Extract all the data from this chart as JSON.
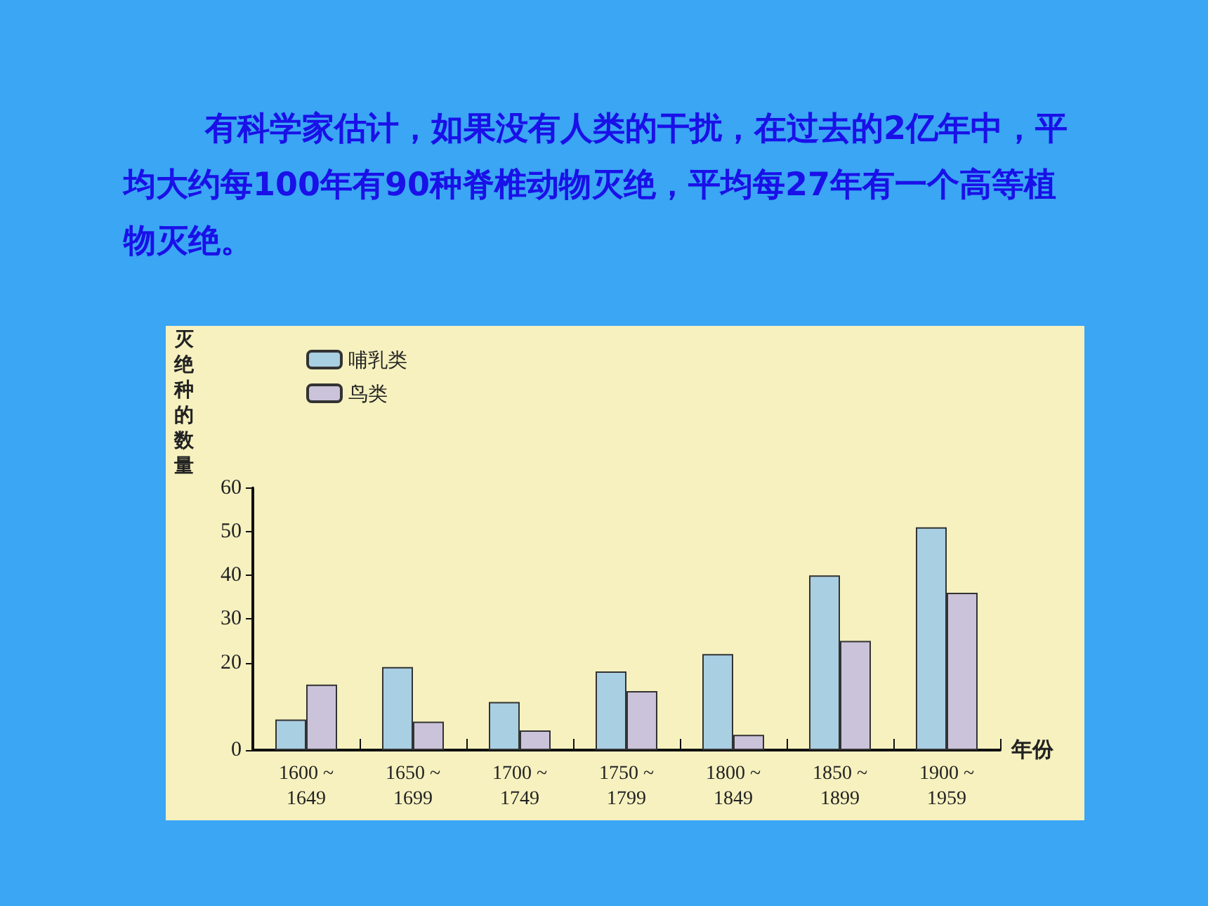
{
  "chart_data": {
    "type": "bar",
    "title": "有科学家估计，如果没有人类的干扰，在过去的2亿年中，平均大约每100年有90种脊椎动物灭绝，平均每27年有一个高等植物灭绝。",
    "xlabel": "年份",
    "ylabel": "灭绝种的数量",
    "categories": [
      "1600 ~\n1649",
      "1650 ~\n1699",
      "1700 ~\n1749",
      "1750 ~\n1799",
      "1800 ~\n1849",
      "1850 ~\n1899",
      "1900 ~\n1959"
    ],
    "series": [
      {
        "name": "哺乳类",
        "color": "#a9cfe2",
        "values": [
          7,
          19,
          11,
          18,
          22,
          40,
          51
        ]
      },
      {
        "name": "鸟类",
        "color": "#cbc3da",
        "values": [
          15,
          6.5,
          4.5,
          13.5,
          3.5,
          25,
          36
        ]
      }
    ],
    "ylim": [
      0,
      60
    ],
    "yticks": [
      0,
      20,
      30,
      40,
      50,
      60
    ],
    "grid": false,
    "legend": "top left"
  }
}
